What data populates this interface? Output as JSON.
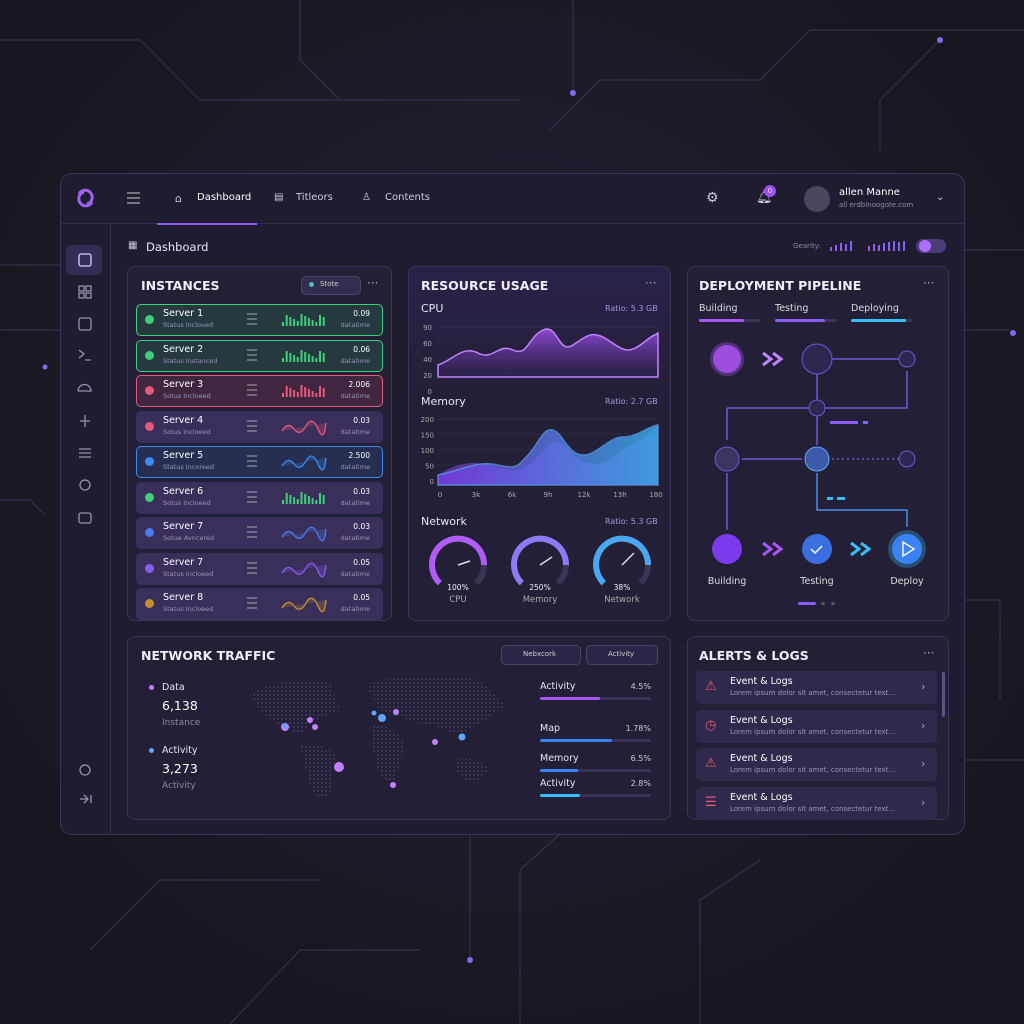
{
  "header": {
    "tabs": [
      "Dashboard",
      "Titleors",
      "Contents"
    ],
    "badge": "0",
    "user_name": "allen Manne",
    "user_email": "all erdblnoogote.com"
  },
  "breadcrumb": "Dashboard",
  "toolbar_label": "Gearity:",
  "instances": {
    "title": "INSTANCES",
    "filter": "Stote",
    "servers": [
      {
        "name": "Server 1",
        "status": "Status incloved",
        "value": "0.09",
        "sub": "datatime",
        "color": "#3ecf7a"
      },
      {
        "name": "Server 2",
        "status": "Status Instanced",
        "value": "0.06",
        "sub": "datatime",
        "color": "#3ecf7a"
      },
      {
        "name": "Server 3",
        "status": "Sotus Incloeed",
        "value": "2.006",
        "sub": "datatime",
        "color": "#e8587a"
      },
      {
        "name": "Server 4",
        "status": "Sotus Incloeed",
        "value": "0.03",
        "sub": "datatime",
        "color": "#e8587a"
      },
      {
        "name": "Server 5",
        "status": "Status Incoreed",
        "value": "2.500",
        "sub": "datatime",
        "color": "#3d8bf0"
      },
      {
        "name": "Server 6",
        "status": "Sotus Incloeed",
        "value": "0.03",
        "sub": "datatime",
        "color": "#3ecf7a"
      },
      {
        "name": "Server 7",
        "status": "Sotue Avncered",
        "value": "0.03",
        "sub": "datatime",
        "color": "#4c7bf0"
      },
      {
        "name": "Server 7",
        "status": "Status Incloeed",
        "value": "0.05",
        "sub": "datatime",
        "color": "#8a5cf0"
      },
      {
        "name": "Server 8",
        "status": "Status Incloeed",
        "value": "0.05",
        "sub": "datatime",
        "color": "#c8902e"
      }
    ]
  },
  "resource": {
    "title": "RESOURCE USAGE",
    "cpu": {
      "label": "CPU",
      "ratio": "Ratio: 5.3 GB",
      "yaxis": [
        "90",
        "60",
        "40",
        "20",
        "0"
      ]
    },
    "memory": {
      "label": "Memory",
      "ratio": "Ratio: 2.7 GB",
      "yaxis": [
        "200",
        "150",
        "100",
        "50",
        "0"
      ],
      "xaxis": [
        "0",
        "3k",
        "6k",
        "9h",
        "12k",
        "13h",
        "180"
      ]
    },
    "network": {
      "label": "Network",
      "ratio": "Ratio: 5.3 GB"
    },
    "gauges": [
      {
        "value": "100%",
        "label": "CPU"
      },
      {
        "value": "250%",
        "label": "Memory"
      },
      {
        "value": "38%",
        "label": "Network"
      }
    ]
  },
  "pipeline": {
    "title": "DEPLOYMENT PIPELINE",
    "stages": [
      "Building",
      "Testing",
      "Deploying"
    ],
    "nodes": [
      "Building",
      "Testing",
      "Deploy"
    ]
  },
  "traffic": {
    "title": "NETWORK TRAFFIC",
    "dropdowns": [
      "Nebxcork",
      "Activity"
    ],
    "stats": [
      {
        "label": "Data",
        "value": "6,138",
        "sub": "Instance"
      },
      {
        "label": "Activity",
        "value": "3,273",
        "sub": "Activity"
      }
    ],
    "bars": [
      {
        "label": "Activity",
        "value": "4.5%"
      },
      {
        "label": "Map",
        "value": "1.78%"
      },
      {
        "label": "Memory",
        "value": "6.5%"
      },
      {
        "label": "Activity",
        "value": "2.8%"
      }
    ]
  },
  "alerts": {
    "title": "ALERTS & LOGS",
    "items": [
      {
        "title": "Event & Logs",
        "text": "Lorem ipsum dolor sit amet, consectetur text..."
      },
      {
        "title": "Event & Logs",
        "text": "Lorem ipsum dolor sit amet, consectetur text..."
      },
      {
        "title": "Event & Logs",
        "text": "Lorem ipsum dolor sit amet, consectetur text..."
      },
      {
        "title": "Event & Logs",
        "text": "Lorem ipsum dolor sit amet, consectetur text..."
      }
    ]
  }
}
